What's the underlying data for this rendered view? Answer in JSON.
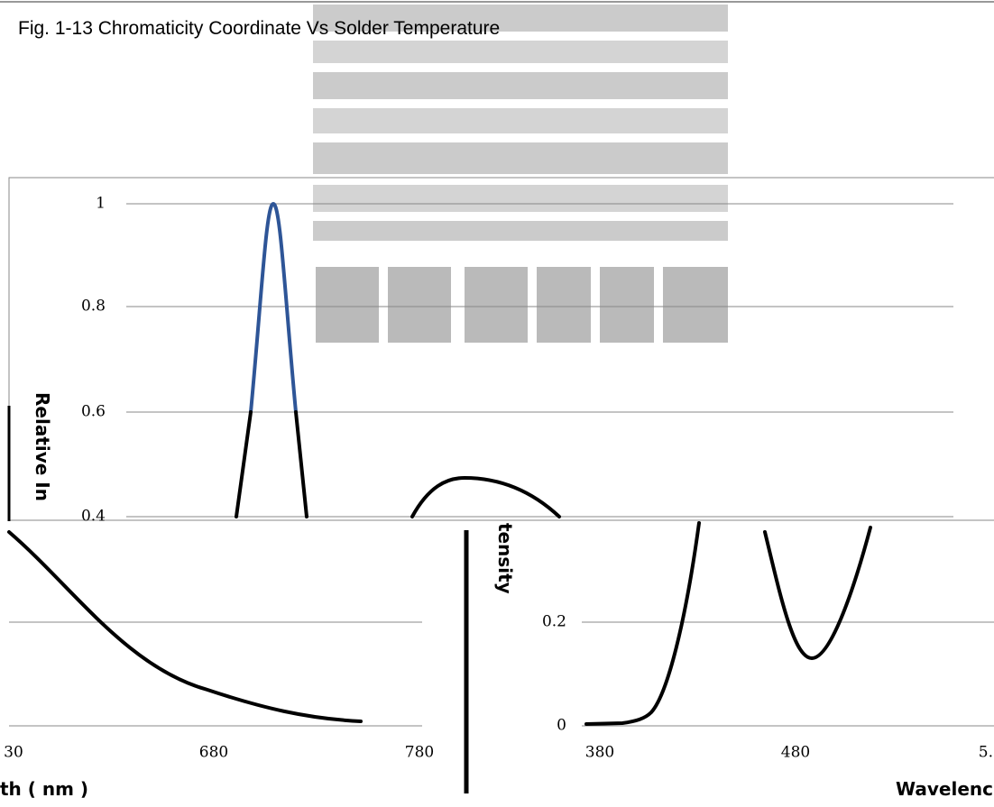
{
  "title": "Fig. 1-13 Chromaticity Coordinate Vs Solder Temperature",
  "upper_panel": {
    "y_axis_label": "Relative In",
    "y_ticks": [
      "1",
      "0.8",
      "0.6",
      "0.4"
    ]
  },
  "lower_left_panel": {
    "x_ticks": [
      "30",
      "680",
      "780"
    ],
    "x_axis_label": "th ( nm )"
  },
  "lower_right_panel": {
    "y_axis_label": "tensity",
    "y_ticks": [
      "0.2",
      "0"
    ],
    "x_ticks": [
      "380",
      "480",
      "5."
    ],
    "x_axis_label": "Wavelenc"
  }
}
